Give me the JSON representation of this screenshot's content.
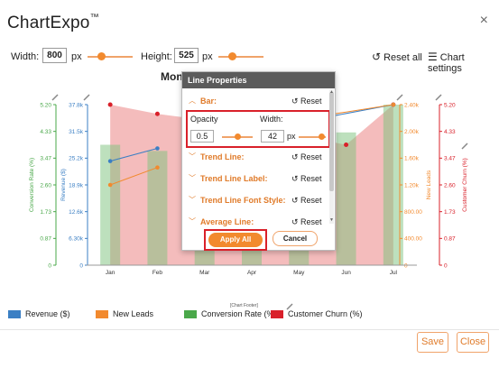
{
  "app": {
    "title": "ChartExpo",
    "trademark": "™",
    "close_glyph": "×"
  },
  "toolbar": {
    "width_label": "Width:",
    "width_value": "800",
    "width_unit": "px",
    "width_slider_level": 0.3,
    "height_label": "Height:",
    "height_value": "525",
    "height_unit": "px",
    "height_slider_level": 0.3,
    "reset_all_label": "Reset all",
    "chart_settings_label": "Chart settings"
  },
  "chart": {
    "title_visible": "Mon"
  },
  "chart_data": {
    "type": "bar",
    "categories": [
      "Jan",
      "Feb",
      "Mar",
      "Apr",
      "May",
      "Jun",
      "Jul"
    ],
    "series": [
      {
        "name": "Revenue ($)",
        "type": "line",
        "axis": "Revenue ($)",
        "color": "#3b7fc4",
        "values": [
          24500,
          27500,
          null,
          null,
          null,
          null,
          37800
        ]
      },
      {
        "name": "New Leads",
        "type": "line",
        "axis": "New Leads",
        "color": "#f28a2e",
        "values": [
          1200,
          1460,
          null,
          null,
          null,
          null,
          2400
        ]
      },
      {
        "name": "Conversion Rate (%)",
        "type": "bar",
        "axis": "Conversion Rate (%)",
        "color": "#4aa84a",
        "values": [
          3.9,
          3.7,
          3.9,
          3.0,
          3.5,
          4.3,
          5.2
        ]
      },
      {
        "name": "Customer Churn (%)",
        "type": "area",
        "axis": "Customer Churn (%)",
        "color": "#e05a5a",
        "values": [
          5.2,
          4.9,
          4.7,
          4.4,
          4.2,
          3.9,
          5.2
        ]
      }
    ],
    "axes": {
      "left_outer": {
        "label": "Conversion Rate (%)",
        "ticks": [
          "0",
          "0.87",
          "1.73",
          "2.60",
          "3.47",
          "4.33",
          "5.20"
        ],
        "range": [
          0,
          5.2
        ],
        "color": "#4aa84a"
      },
      "left_inner": {
        "label": "Revenue ($)",
        "ticks": [
          "0",
          "6.30k",
          "12.6k",
          "18.9k",
          "25.2k",
          "31.5k",
          "37.8k"
        ],
        "range": [
          0,
          37800
        ],
        "color": "#3b7fc4"
      },
      "right_inner": {
        "label": "New Leads",
        "ticks": [
          "0",
          "400.00",
          "800.00",
          "1.20k",
          "1.60k",
          "2.00k",
          "2.40k"
        ],
        "range": [
          0,
          2400
        ],
        "color": "#f28a2e"
      },
      "right_outer": {
        "label": "Customer Churn (%)",
        "ticks": [
          "0",
          "0.87",
          "1.73",
          "2.60",
          "3.47",
          "4.33",
          "5.20"
        ],
        "range": [
          0,
          5.2
        ],
        "color": "#d9202a"
      }
    },
    "grid": false
  },
  "legend": {
    "items": [
      {
        "label": "Revenue ($)",
        "color": "#3b7fc4"
      },
      {
        "label": "New Leads",
        "color": "#f28a2e"
      },
      {
        "label": "Conversion Rate (%)",
        "color": "#4aa84a"
      },
      {
        "label": "Customer Churn (%)",
        "color": "#d9202a"
      }
    ],
    "footer_label": "[Chart Footer]"
  },
  "popup": {
    "title": "Line Properties",
    "bar_label": "Bar:",
    "reset_label": "Reset",
    "opacity_label": "Opacity",
    "opacity_value": "0.5",
    "width_label": "Width:",
    "width_value": "42",
    "width_unit": "px",
    "opacity_slider_level": 0.5,
    "width_slider_level": 0.85,
    "sections": [
      {
        "label": "Trend Line:",
        "reset": "Reset"
      },
      {
        "label": "Trend Line Label:",
        "reset": "Reset"
      },
      {
        "label": "Trend Line Font Style:",
        "reset": "Reset"
      },
      {
        "label": "Average Line:",
        "reset": "Reset"
      }
    ],
    "apply_all_label": "Apply All",
    "cancel_label": "Cancel"
  },
  "footer": {
    "save_label": "Save",
    "close_label": "Close"
  },
  "colors": {
    "accent": "#f28a2e",
    "highlight": "#d9202a"
  }
}
